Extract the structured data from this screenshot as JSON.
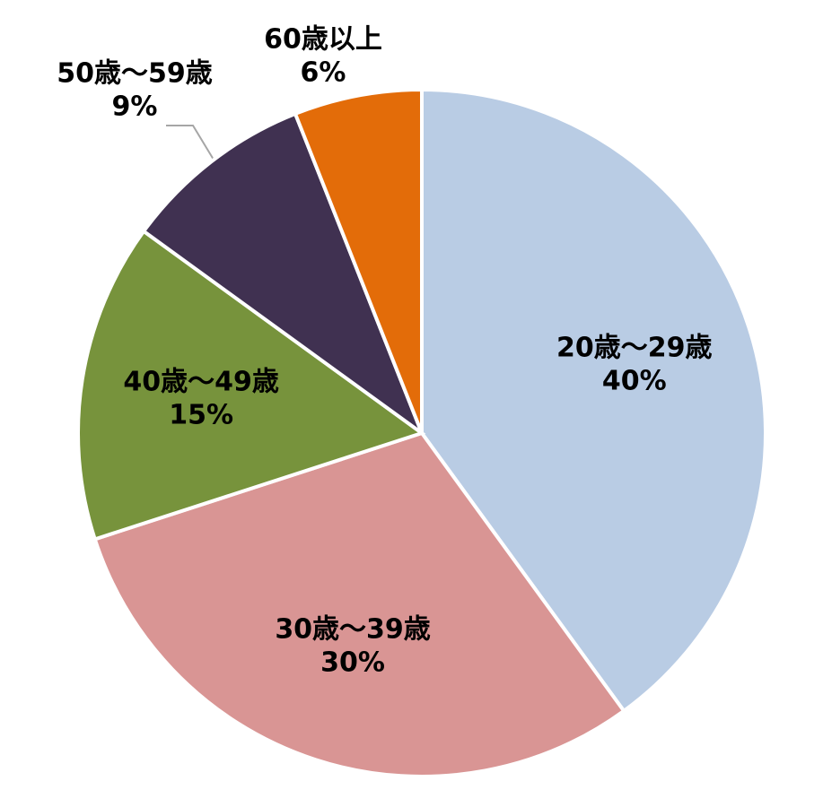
{
  "chart_data": {
    "type": "pie",
    "categories": [
      "20歳～29歳",
      "30歳～39歳",
      "40歳～49歳",
      "50歳～59歳",
      "60歳以上"
    ],
    "values": [
      40,
      30,
      15,
      9,
      6
    ],
    "value_labels": [
      "40%",
      "30%",
      "15%",
      "9%",
      "6%"
    ],
    "colors": [
      "#b9cce4",
      "#d99594",
      "#77933c",
      "#403151",
      "#e36c09"
    ]
  }
}
